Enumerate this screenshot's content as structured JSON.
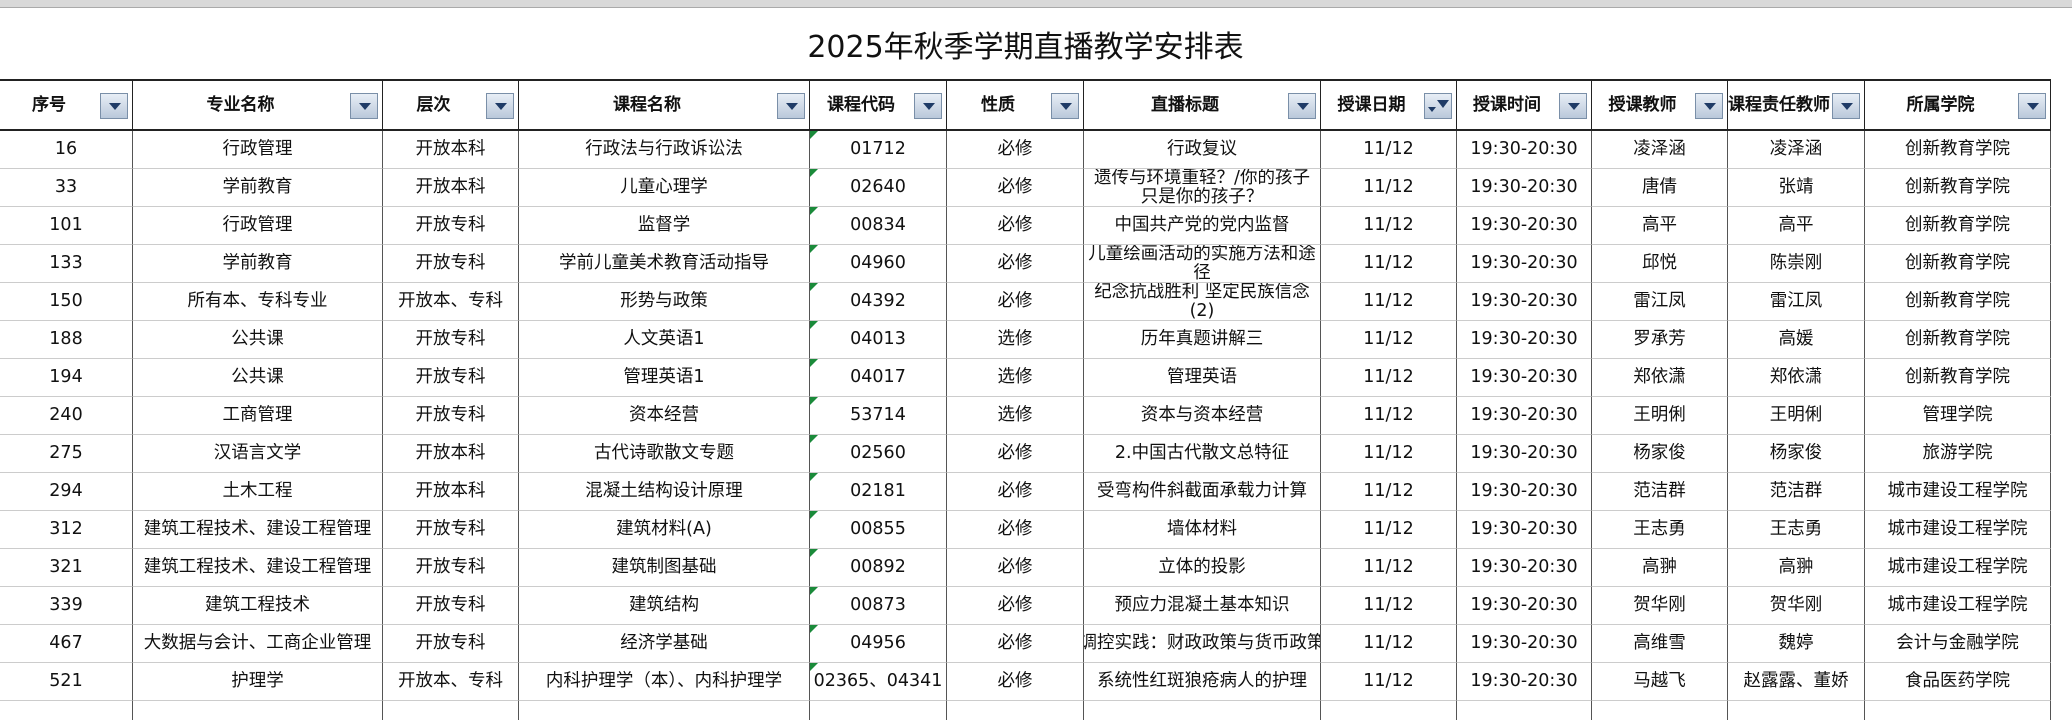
{
  "title": "2025年秋季学期直播教学安排表",
  "table": {
    "header": [
      "序号",
      "专业名称",
      "层次",
      "课程名称",
      "课程代码",
      "性质",
      "直播标题",
      "授课日期",
      "授课时间",
      "授课教师",
      "课程责任教师",
      "所属学院"
    ],
    "rows": [
      [
        "16",
        "行政管理",
        "开放本科",
        "行政法与行政诉讼法",
        "01712",
        "必修",
        "行政复议",
        "11/12",
        "19:30-20:30",
        "凌泽涵",
        "凌泽涵",
        "创新教育学院"
      ],
      [
        "33",
        "学前教育",
        "开放本科",
        "儿童心理学",
        "02640",
        "必修",
        "遗传与环境重轻？/你的孩子只是你的孩子？",
        "11/12",
        "19:30-20:30",
        "唐倩",
        "张靖",
        "创新教育学院"
      ],
      [
        "101",
        "行政管理",
        "开放专科",
        "监督学",
        "00834",
        "必修",
        "中国共产党的党内监督",
        "11/12",
        "19:30-20:30",
        "高平",
        "高平",
        "创新教育学院"
      ],
      [
        "133",
        "学前教育",
        "开放专科",
        "学前儿童美术教育活动指导",
        "04960",
        "必修",
        "儿童绘画活动的实施方法和途径",
        "11/12",
        "19:30-20:30",
        "邱悦",
        "陈崇刚",
        "创新教育学院"
      ],
      [
        "150",
        "所有本、专科专业",
        "开放本、专科",
        "形势与政策",
        "04392",
        "必修",
        "纪念抗战胜利 坚定民族信念(2)",
        "11/12",
        "19:30-20:30",
        "雷江凤",
        "雷江凤",
        "创新教育学院"
      ],
      [
        "188",
        "公共课",
        "开放专科",
        "人文英语1",
        "04013",
        "选修",
        "历年真题讲解三",
        "11/12",
        "19:30-20:30",
        "罗承芳",
        "高媛",
        "创新教育学院"
      ],
      [
        "194",
        "公共课",
        "开放专科",
        "管理英语1",
        "04017",
        "选修",
        "管理英语",
        "11/12",
        "19:30-20:30",
        "郑依潇",
        "郑依潇",
        "创新教育学院"
      ],
      [
        "240",
        "工商管理",
        "开放专科",
        "资本经营",
        "53714",
        "选修",
        "资本与资本经营",
        "11/12",
        "19:30-20:30",
        "王明俐",
        "王明俐",
        "管理学院"
      ],
      [
        "275",
        "汉语言文学",
        "开放本科",
        "古代诗歌散文专题",
        "02560",
        "必修",
        "2.中国古代散文总特征",
        "11/12",
        "19:30-20:30",
        "杨家俊",
        "杨家俊",
        "旅游学院"
      ],
      [
        "294",
        "土木工程",
        "开放本科",
        "混凝土结构设计原理",
        "02181",
        "必修",
        "受弯构件斜截面承载力计算",
        "11/12",
        "19:30-20:30",
        "范洁群",
        "范洁群",
        "城市建设工程学院"
      ],
      [
        "312",
        "建筑工程技术、建设工程管理",
        "开放专科",
        "建筑材料(A)",
        "00855",
        "必修",
        "墙体材料",
        "11/12",
        "19:30-20:30",
        "王志勇",
        "王志勇",
        "城市建设工程学院"
      ],
      [
        "321",
        "建筑工程技术、建设工程管理",
        "开放专科",
        "建筑制图基础",
        "00892",
        "必修",
        "立体的投影",
        "11/12",
        "19:30-20:30",
        "高翀",
        "高翀",
        "城市建设工程学院"
      ],
      [
        "339",
        "建筑工程技术",
        "开放专科",
        "建筑结构",
        "00873",
        "必修",
        "预应力混凝土基本知识",
        "11/12",
        "19:30-20:30",
        "贺华刚",
        "贺华刚",
        "城市建设工程学院"
      ],
      [
        "467",
        "大数据与会计、工商企业管理",
        "开放专科",
        "经济学基础",
        "04956",
        "必修",
        "调控实践：财政政策与货币政策",
        "11/12",
        "19:30-20:30",
        "高维雪",
        "魏婷",
        "会计与金融学院"
      ],
      [
        "521",
        "护理学",
        "开放本、专科",
        "内科护理学（本）、内科护理学",
        "02365、04341",
        "必修",
        "系统性红斑狼疮病人的护理",
        "11/12",
        "19:30-20:30",
        "马越飞",
        "赵露露、董娇",
        "食品医药学院"
      ]
    ]
  }
}
